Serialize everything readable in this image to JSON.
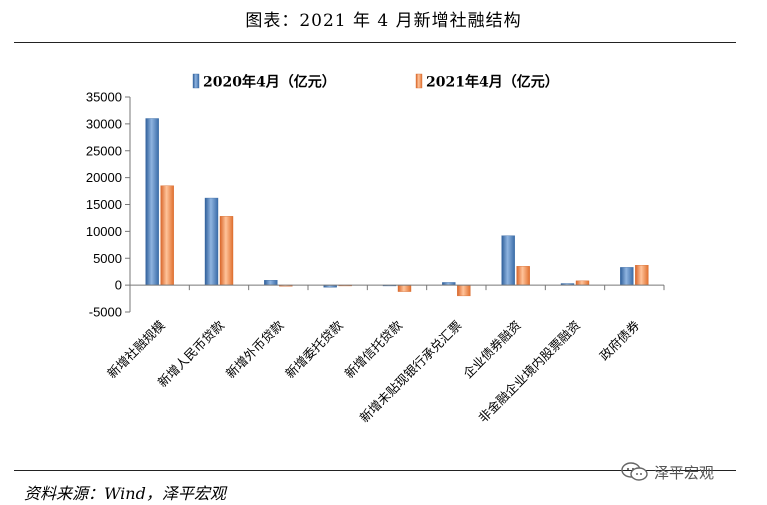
{
  "page": {
    "title": "图表：2021 年 4 月新增社融结构",
    "source": "资料来源：Wind，泽平宏观",
    "watermark": "泽平宏观",
    "watermark_icon": "wechat-icon"
  },
  "chart_data": {
    "type": "bar",
    "title": "图表：2021 年 4 月新增社融结构",
    "xlabel": "",
    "ylabel": "",
    "ylim": [
      -5000,
      35000
    ],
    "yticks": [
      -5000,
      0,
      5000,
      10000,
      15000,
      20000,
      25000,
      30000,
      35000
    ],
    "ytick_labels": [
      "-5000",
      "0",
      "5000",
      "10000",
      "15000",
      "20000",
      "25000",
      "30000",
      "35000"
    ],
    "grid": false,
    "legend_position": "top",
    "categories": [
      "新增社融规模",
      "新增人民币贷款",
      "新增外币贷款",
      "新增委托贷款",
      "新增信托贷款",
      "新增未贴现银行承兑汇票",
      "企业债券融资",
      "非金融企业境内股票融资",
      "政府债券"
    ],
    "series": [
      {
        "name": "2020年4月（亿元）",
        "color": "#4a7ebb",
        "values": [
          31000,
          16200,
          900,
          -400,
          -100,
          500,
          9200,
          300,
          3300
        ]
      },
      {
        "name": "2021年4月（亿元）",
        "color": "#f08a4b",
        "values": [
          18500,
          12800,
          -200,
          -150,
          -1200,
          -2000,
          3500,
          800,
          3700
        ]
      }
    ]
  }
}
